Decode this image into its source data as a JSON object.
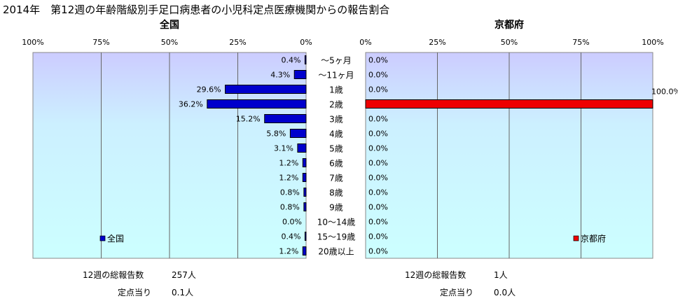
{
  "title": "2014年　第12週の年齢階級別手足口病患者の小児科定点医療機関からの報告割合",
  "chart_data": [
    {
      "type": "bar",
      "orientation": "horizontal",
      "title": "全国",
      "legend": "全国",
      "legend_position": "bottom-left",
      "xlim": [
        0,
        100
      ],
      "x_reversed": true,
      "ticks": [
        "100%",
        "75%",
        "50%",
        "25%",
        "0%"
      ],
      "grid": true,
      "bar_color": "#0000cc",
      "categories": [
        "～5ヶ月",
        "～11ヶ月",
        "1歳",
        "2歳",
        "3歳",
        "4歳",
        "5歳",
        "6歳",
        "7歳",
        "8歳",
        "9歳",
        "10～14歳",
        "15～19歳",
        "20歳以上"
      ],
      "values": [
        0.4,
        4.3,
        29.6,
        36.2,
        15.2,
        5.8,
        3.1,
        1.2,
        1.2,
        0.8,
        0.8,
        0.0,
        0.4,
        1.2
      ],
      "labels": [
        "0.4%",
        "4.3%",
        "29.6%",
        "36.2%",
        "15.2%",
        "5.8%",
        "3.1%",
        "1.2%",
        "1.2%",
        "0.8%",
        "0.8%",
        "0.0%",
        "0.4%",
        "1.2%"
      ]
    },
    {
      "type": "bar",
      "orientation": "horizontal",
      "title": "京都府",
      "legend": "京都府",
      "legend_position": "bottom-right",
      "xlim": [
        0,
        100
      ],
      "x_reversed": false,
      "ticks": [
        "0%",
        "25%",
        "50%",
        "75%",
        "100%"
      ],
      "grid": true,
      "bar_color": "#ee0000",
      "categories": [
        "～5ヶ月",
        "～11ヶ月",
        "1歳",
        "2歳",
        "3歳",
        "4歳",
        "5歳",
        "6歳",
        "7歳",
        "8歳",
        "9歳",
        "10～14歳",
        "15～19歳",
        "20歳以上"
      ],
      "values": [
        0,
        0,
        0,
        100,
        0,
        0,
        0,
        0,
        0,
        0,
        0,
        0,
        0,
        0
      ],
      "labels": [
        "0.0%",
        "0.0%",
        "0.0%",
        "100.0%",
        "0.0%",
        "0.0%",
        "0.0%",
        "0.0%",
        "0.0%",
        "0.0%",
        "0.0%",
        "0.0%",
        "0.0%",
        "0.0%"
      ]
    }
  ],
  "colors": {
    "plot_bg": "#ccccff",
    "plot_bg_light": "#ccffff",
    "national_bar": "#0000cc",
    "kyoto_bar": "#ee0000"
  },
  "footer": {
    "national_total_label": "12週の総報告数",
    "national_total_value": "257人",
    "national_per_label": "定点当り",
    "national_per_value": "0.1人",
    "kyoto_total_label": "12週の総報告数",
    "kyoto_total_value": "1人",
    "kyoto_per_label": "定点当り",
    "kyoto_per_value": "0.0人"
  }
}
